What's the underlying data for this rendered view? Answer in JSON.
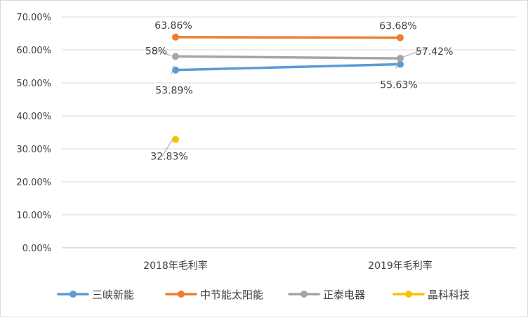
{
  "chart_data": {
    "type": "line",
    "categories": [
      "2018年毛利率",
      "2019年毛利率"
    ],
    "series": [
      {
        "name": "三峡新能",
        "values": [
          53.89,
          55.63
        ],
        "labels": [
          "53.89%",
          "55.63%"
        ],
        "color": "#5b9bd5"
      },
      {
        "name": "中节能太阳能",
        "values": [
          63.86,
          63.68
        ],
        "labels": [
          "63.86%",
          "63.68%"
        ],
        "color": "#ed7d31"
      },
      {
        "name": "正泰电器",
        "values": [
          58,
          57.42
        ],
        "labels": [
          "58%",
          "57.42%"
        ],
        "color": "#a5a5a5"
      },
      {
        "name": "晶科科技",
        "values": [
          32.83,
          null
        ],
        "labels": [
          "32.83%",
          null
        ],
        "color": "#ffc000"
      }
    ],
    "y_ticks": [
      "0.00%",
      "10.00%",
      "20.00%",
      "30.00%",
      "40.00%",
      "50.00%",
      "60.00%",
      "70.00%"
    ],
    "ylim": [
      0,
      70
    ],
    "ytick_step": 10,
    "grid": true,
    "legend_position": "bottom"
  }
}
